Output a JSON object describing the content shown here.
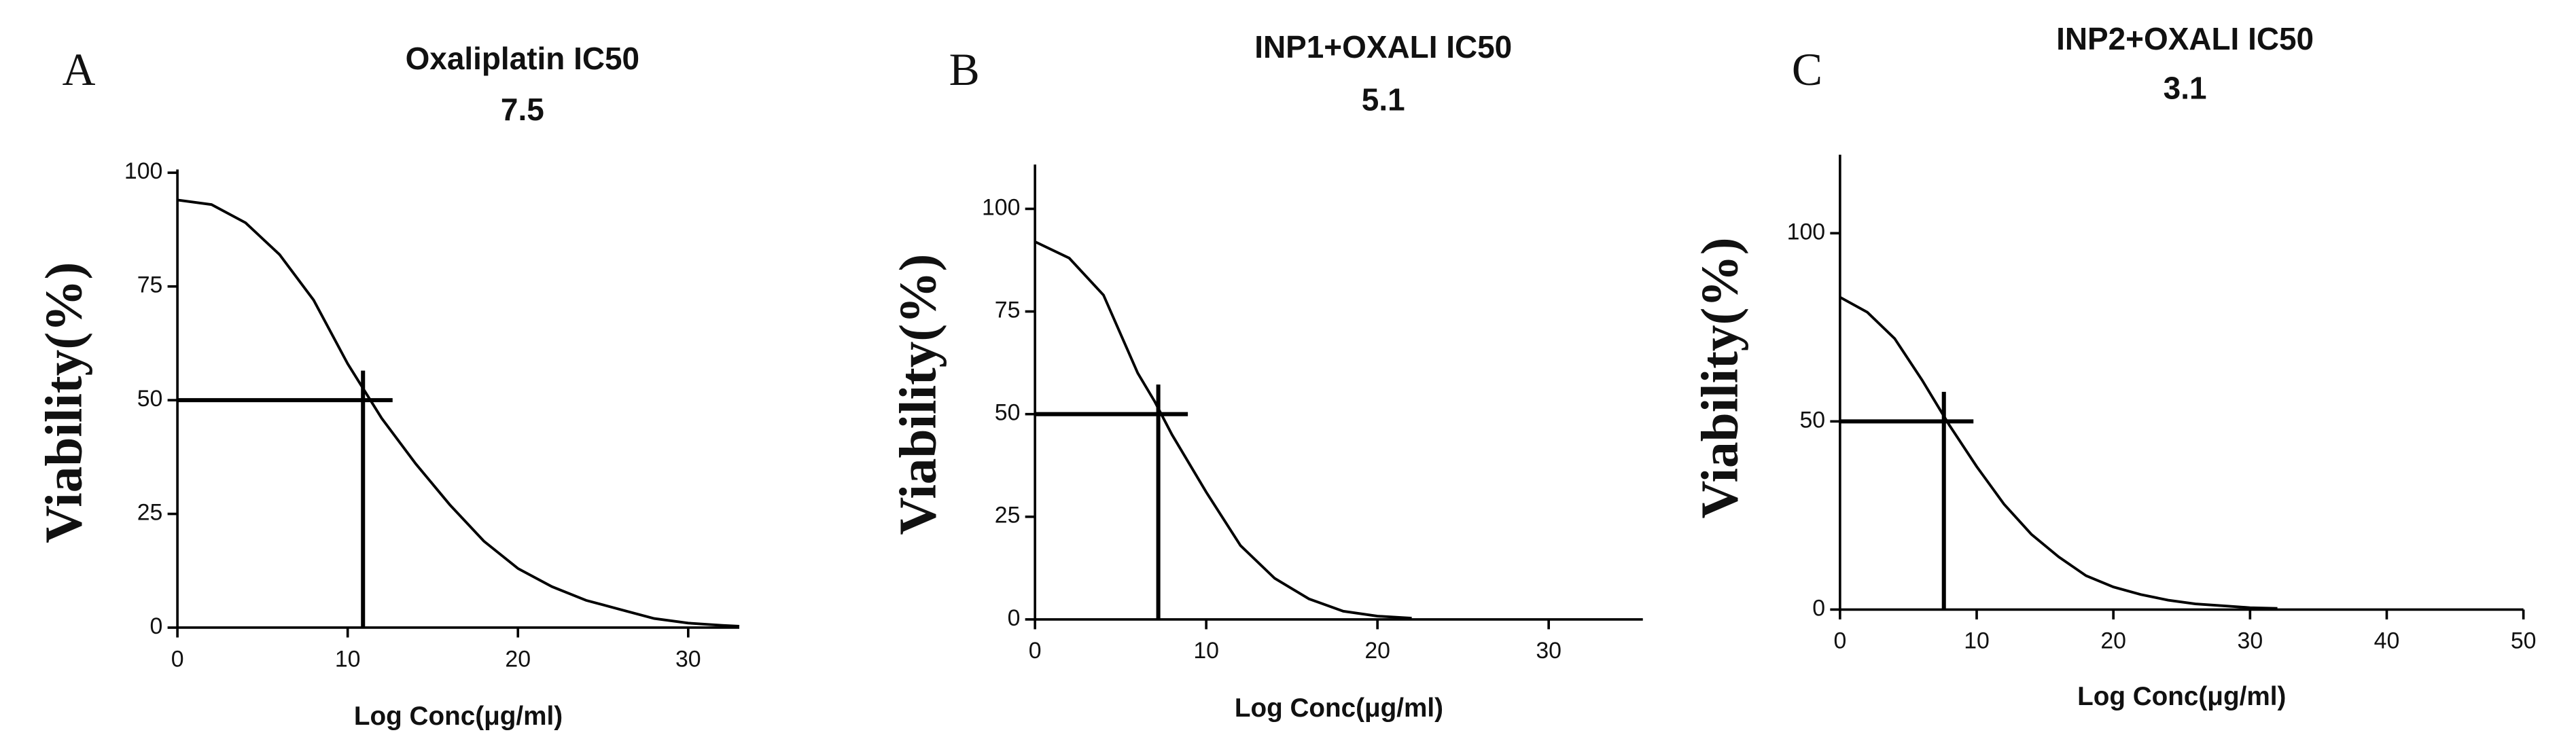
{
  "chart_data": [
    {
      "type": "line",
      "panel": "A",
      "title": "Oxaliplatin IC50",
      "subtitle": "7.5",
      "x_label": "Log Conc(μg/ml)",
      "y_label": "Viability(%)",
      "color": "#000000",
      "xlim": [
        0,
        33
      ],
      "ylim": [
        0,
        100
      ],
      "xticks": [
        0,
        10,
        20,
        30
      ],
      "yticks": [
        0,
        25,
        50,
        75,
        100
      ],
      "x": [
        0,
        2,
        4,
        6,
        8,
        10,
        12,
        14,
        16,
        18,
        20,
        22,
        24,
        26,
        28,
        30,
        32,
        33
      ],
      "values": [
        94,
        93,
        89,
        82,
        72,
        58,
        46,
        36,
        27,
        19,
        13,
        9,
        6,
        4,
        2,
        1,
        0.5,
        0.3
      ],
      "ic50_lines": {
        "x": 10.9,
        "y": 50
      }
    },
    {
      "type": "line",
      "panel": "B",
      "title": "INP1+OXALI IC50",
      "subtitle": "5.1",
      "x_label": "Log Conc(μg/ml)",
      "y_label": "Viability(%)",
      "color": "#000000",
      "xlim": [
        0,
        35.5
      ],
      "ylim": [
        0,
        110
      ],
      "xticks": [
        0,
        10,
        20,
        30
      ],
      "yticks": [
        0,
        25,
        50,
        75,
        100
      ],
      "x": [
        0,
        2,
        4,
        6,
        7,
        8,
        10,
        12,
        14,
        16,
        18,
        20,
        22
      ],
      "values": [
        92,
        88,
        79,
        60,
        53,
        45,
        31,
        18,
        10,
        5,
        2,
        0.8,
        0.3
      ],
      "ic50_lines": {
        "x": 7.2,
        "y": 50
      }
    },
    {
      "type": "line",
      "panel": "C",
      "title": "INP2+OXALI IC50",
      "subtitle": "3.1",
      "x_label": "Log Conc(μg/ml)",
      "y_label": "Viability(%)",
      "color": "#000000",
      "xlim": [
        0,
        50
      ],
      "ylim": [
        0,
        120
      ],
      "xticks": [
        0,
        10,
        20,
        30,
        40,
        50
      ],
      "yticks": [
        0,
        50,
        100
      ],
      "x": [
        0,
        2,
        4,
        6,
        8,
        10,
        12,
        14,
        16,
        18,
        20,
        22,
        24,
        26,
        28,
        30,
        32
      ],
      "values": [
        83,
        79,
        72,
        61,
        49,
        38,
        28,
        20,
        14,
        9,
        6,
        4,
        2.5,
        1.5,
        1,
        0.5,
        0.3
      ],
      "ic50_lines": {
        "x": 7.6,
        "y": 50
      }
    }
  ]
}
